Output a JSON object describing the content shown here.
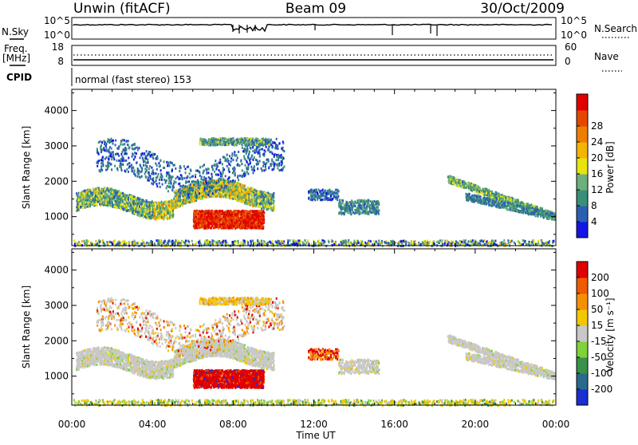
{
  "header": {
    "station": "Unwin (fitACF)",
    "beam": "Beam 09",
    "date": "30/Oct/2009"
  },
  "panels": {
    "nsky_label": "N.Sky",
    "nsearch_label": "N.Search",
    "freq_label": "Freq.",
    "freq_unit": "[MHz]",
    "nave_label": "Nave",
    "cpid_label": "CPID",
    "cpid_text": "normal (fast stereo) 153",
    "nsky_ticks": [
      "10^5",
      "10^0"
    ],
    "nsearch_ticks": [
      "10^5",
      "10^0"
    ],
    "freq_ticks": [
      "18",
      "8"
    ],
    "nave_ticks": [
      "60",
      "0"
    ]
  },
  "chart_data": [
    {
      "type": "heatmap",
      "name": "power",
      "ylabel": "Slant Range [km]",
      "xlabel": "",
      "ylim": [
        180,
        4600
      ],
      "yticks": [
        "1000",
        "2000",
        "3000",
        "4000"
      ],
      "x_tick_labels": [
        "00:00",
        "04:00",
        "08:00",
        "12:00",
        "16:00",
        "20:00",
        "00:00"
      ],
      "xlim_hours": [
        0,
        24
      ],
      "colorbar": {
        "label": "Power [dB]",
        "ticks": [
          "4",
          "8",
          "12",
          "16",
          "20",
          "24",
          "28"
        ],
        "colors": [
          "#1414e6",
          "#2a5fb4",
          "#3a8f78",
          "#6db07a",
          "#e9e40c",
          "#f5b400",
          "#f07d00",
          "#e64700",
          "#e00000"
        ]
      },
      "features": [
        {
          "desc": "lower band",
          "hours": [
            0.3,
            10.0
          ],
          "range_km": [
            1100,
            1800
          ],
          "level": 12
        },
        {
          "desc": "upper patches",
          "hours": [
            1.5,
            12.5
          ],
          "range_km": [
            1700,
            3250
          ],
          "level": 6
        },
        {
          "desc": "red blob",
          "hours": [
            6.0,
            9.4
          ],
          "range_km": [
            750,
            1200
          ],
          "level": 28
        },
        {
          "desc": "mid blobs",
          "hours": [
            11.7,
            15.3
          ],
          "range_km": [
            900,
            1800
          ],
          "level": 8
        },
        {
          "desc": "evening arcs",
          "hours": [
            18.5,
            24.0
          ],
          "range_km": [
            850,
            2300
          ],
          "level": 10
        }
      ]
    },
    {
      "type": "heatmap",
      "name": "velocity",
      "ylabel": "Slant Range [km]",
      "xlabel": "Time UT",
      "ylim": [
        180,
        4600
      ],
      "yticks": [
        "1000",
        "2000",
        "3000",
        "4000"
      ],
      "x_tick_labels": [
        "00:00",
        "04:00",
        "08:00",
        "12:00",
        "16:00",
        "20:00",
        "00:00"
      ],
      "xlim_hours": [
        0,
        24
      ],
      "colorbar": {
        "label": "Velocity [m s⁻¹]",
        "ticks": [
          "200",
          "100",
          "50",
          "15",
          "-15",
          "-50",
          "-100",
          "-200"
        ],
        "colors": [
          "#1a2fd1",
          "#2a6a8c",
          "#3a9148",
          "#7fd23a",
          "#c8c8c8",
          "#f2c800",
          "#f59000",
          "#f05a00",
          "#e00000"
        ]
      }
    }
  ]
}
